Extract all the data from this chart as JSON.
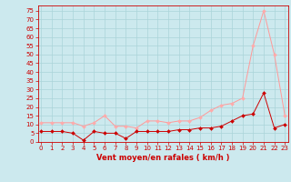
{
  "x": [
    0,
    1,
    2,
    3,
    4,
    5,
    6,
    7,
    8,
    9,
    10,
    11,
    12,
    13,
    14,
    15,
    16,
    17,
    18,
    19,
    20,
    21,
    22,
    23
  ],
  "wind_avg": [
    6,
    6,
    6,
    5,
    1,
    6,
    5,
    5,
    2,
    6,
    6,
    6,
    6,
    7,
    7,
    8,
    8,
    9,
    12,
    15,
    16,
    28,
    8,
    10
  ],
  "wind_gust": [
    11,
    11,
    11,
    11,
    9,
    11,
    15,
    9,
    9,
    8,
    12,
    12,
    11,
    12,
    12,
    14,
    18,
    21,
    22,
    25,
    55,
    75,
    50,
    15
  ],
  "xlabel": "Vent moyen/en rafales ( km/h )",
  "yticks": [
    0,
    5,
    10,
    15,
    20,
    25,
    30,
    35,
    40,
    45,
    50,
    55,
    60,
    65,
    70,
    75
  ],
  "xticks": [
    0,
    1,
    2,
    3,
    4,
    5,
    6,
    7,
    8,
    9,
    10,
    11,
    12,
    13,
    14,
    15,
    16,
    17,
    18,
    19,
    20,
    21,
    22,
    23
  ],
  "ylim": [
    0,
    78
  ],
  "xlim": [
    -0.3,
    23.3
  ],
  "bg_color": "#cce9ee",
  "grid_color": "#aad4d9",
  "line_avg_color": "#cc0000",
  "line_gust_color": "#ff9999",
  "marker_avg_color": "#cc0000",
  "marker_gust_color": "#ffaaaa",
  "xlabel_color": "#cc0000",
  "tick_color": "#cc0000",
  "spine_color": "#cc0000",
  "tick_fontsize": 5.0,
  "xlabel_fontsize": 6.0,
  "linewidth": 0.7,
  "markersize": 2.0
}
